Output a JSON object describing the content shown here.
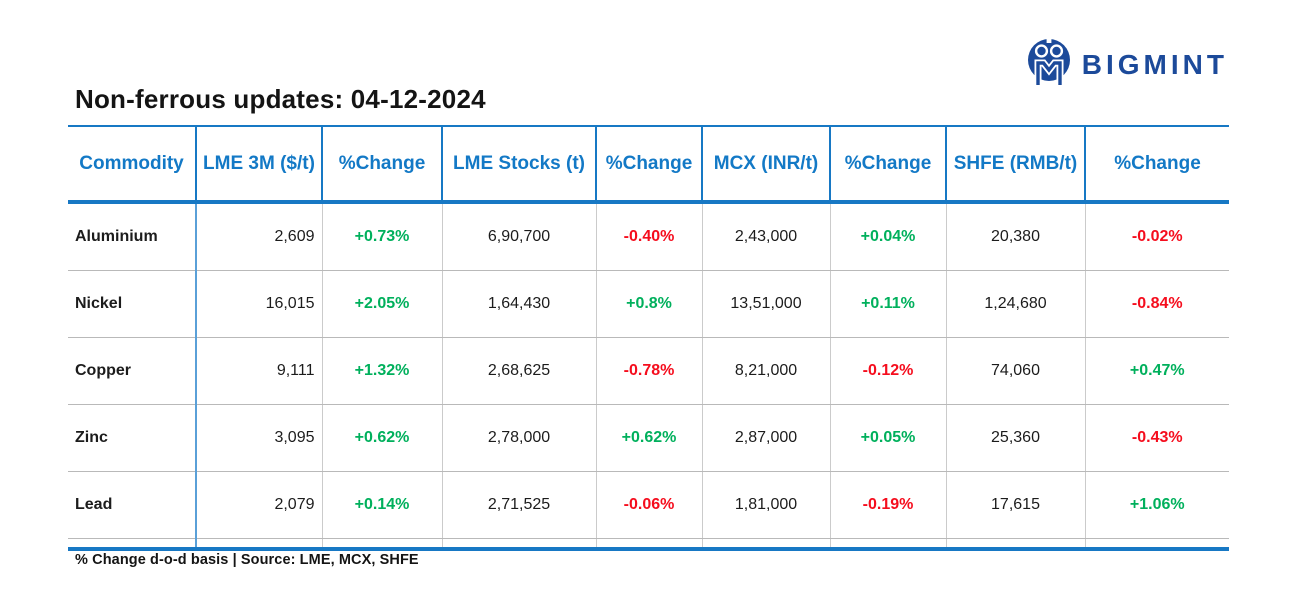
{
  "logo": {
    "brand": "BIGMINT",
    "icon": "bigmint-m-circle-logo"
  },
  "chart_data": {
    "type": "table",
    "title": "Non-ferrous updates: 04-12-2024",
    "footnote": "% Change d-o-d basis | Source: LME, MCX, SHFE",
    "columns": [
      {
        "key": "commodity",
        "label": "Commodity",
        "align": "left",
        "type": "text"
      },
      {
        "key": "lme_3m",
        "label": "LME 3M ($/t)",
        "align": "right",
        "type": "number"
      },
      {
        "key": "lme_3m_change",
        "label": "%Change",
        "align": "center",
        "type": "change"
      },
      {
        "key": "lme_stocks",
        "label": "LME Stocks (t)",
        "align": "center",
        "type": "number"
      },
      {
        "key": "lme_stocks_change",
        "label": "%Change",
        "align": "center",
        "type": "change"
      },
      {
        "key": "mcx",
        "label": "MCX (INR/t)",
        "align": "center",
        "type": "number"
      },
      {
        "key": "mcx_change",
        "label": "%Change",
        "align": "center",
        "type": "change"
      },
      {
        "key": "shfe",
        "label": "SHFE (RMB/t)",
        "align": "center",
        "type": "number"
      },
      {
        "key": "shfe_change",
        "label": "%Change",
        "align": "center",
        "type": "change"
      }
    ],
    "rows": [
      [
        "Aluminium",
        "2,609",
        "+0.73%",
        "6,90,700",
        "-0.40%",
        "2,43,000",
        "+0.04%",
        "20,380",
        "-0.02%"
      ],
      [
        "Nickel",
        "16,015",
        "+2.05%",
        "1,64,430",
        "+0.8%",
        "13,51,000",
        "+0.11%",
        "1,24,680",
        "-0.84%"
      ],
      [
        "Copper",
        "9,111",
        "+1.32%",
        "2,68,625",
        "-0.78%",
        "8,21,000",
        "-0.12%",
        "74,060",
        "+0.47%"
      ],
      [
        "Zinc",
        "3,095",
        "+0.62%",
        "2,78,000",
        "+0.62%",
        "2,87,000",
        "+0.05%",
        "25,360",
        "-0.43%"
      ],
      [
        "Lead",
        "2,079",
        "+0.14%",
        "2,71,525",
        "-0.06%",
        "1,81,000",
        "-0.19%",
        "17,615",
        "+1.06%"
      ]
    ]
  },
  "colors": {
    "header_blue": "#1379c6",
    "border_blue": "#1778c4",
    "light_blue_divider": "#5aa0d8",
    "positive_green": "#00b05c",
    "negative_red": "#f50d1d",
    "logo_navy": "#1c4a9a"
  }
}
